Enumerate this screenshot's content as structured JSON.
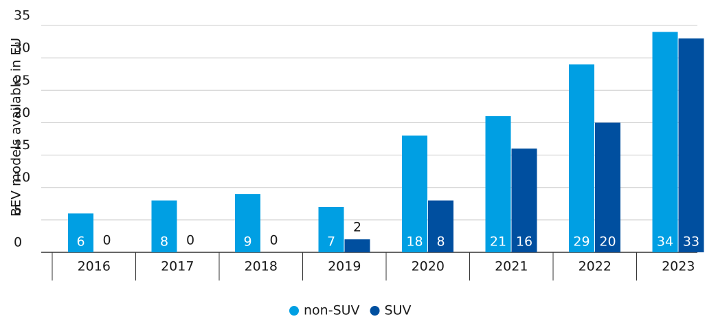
{
  "chart_data": {
    "type": "bar",
    "y_axis_label": "BEV models available in EU",
    "categories": [
      "2016",
      "2017",
      "2018",
      "2019",
      "2020",
      "2021",
      "2022",
      "2023"
    ],
    "series": [
      {
        "name": "non-SUV",
        "color": "#009fe3",
        "values": [
          6,
          8,
          9,
          7,
          18,
          21,
          29,
          34
        ]
      },
      {
        "name": "SUV",
        "color": "#004f9f",
        "values": [
          0,
          0,
          0,
          2,
          8,
          16,
          20,
          33
        ]
      }
    ],
    "ylim": [
      0,
      35
    ],
    "yticks": [
      0,
      5,
      10,
      15,
      20,
      25,
      30,
      35
    ],
    "grid": true,
    "legend": "bottom"
  }
}
